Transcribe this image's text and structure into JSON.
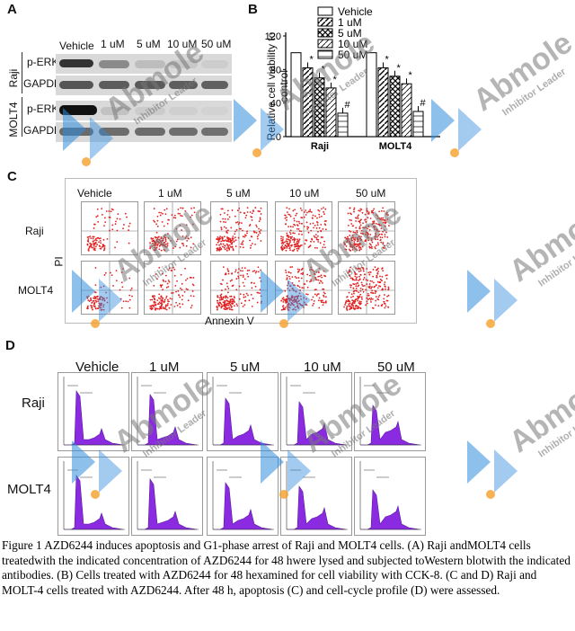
{
  "panelA": {
    "letter": "A",
    "columns": [
      "Vehicle",
      "1 uM",
      "5 uM",
      "10 uM",
      "50 uM"
    ],
    "cell_lines": [
      "Raji",
      "MOLT4"
    ],
    "rows": [
      "p-ERK",
      "GAPDH",
      "p-ERK",
      "GAPDH"
    ]
  },
  "panelB": {
    "letter": "B",
    "legend": [
      "Vehicle",
      "1 uM",
      "5 uM",
      "10 uM",
      "50 uM"
    ],
    "ylabel": "Relative cell viability to control",
    "yticks": [
      "0",
      "40",
      "80",
      "120"
    ],
    "groups": [
      "Raji",
      "MOLT4"
    ],
    "star": "*",
    "hash": "#"
  },
  "chart_data": {
    "type": "bar",
    "categories": [
      "Raji",
      "MOLT4"
    ],
    "series": [
      {
        "name": "Vehicle",
        "values": [
          100,
          100
        ]
      },
      {
        "name": "1 uM",
        "values": [
          82,
          82
        ]
      },
      {
        "name": "5 uM",
        "values": [
          70,
          72
        ]
      },
      {
        "name": "10 uM",
        "values": [
          58,
          63
        ]
      },
      {
        "name": "50 uM",
        "values": [
          28,
          30
        ]
      }
    ],
    "ylabel": "Relative cell viability to control",
    "ylim": [
      0,
      120
    ],
    "yticks": [
      0,
      40,
      80,
      120
    ]
  },
  "panelC": {
    "letter": "C",
    "columns": [
      "Vehicle",
      "1 uM",
      "5 uM",
      "10 uM",
      "50 uM"
    ],
    "rows": [
      "Raji",
      "MOLT4"
    ],
    "ylabel": "PI",
    "xlabel": "Annexin V"
  },
  "panelD": {
    "letter": "D",
    "columns": [
      "Vehicle",
      "1 uM",
      "5 uM",
      "10 uM",
      "50 uM"
    ],
    "rows": [
      "Raji",
      "MOLT4"
    ]
  },
  "watermark": {
    "brand": "Abmole",
    "tagline": "Inhibitor Leader"
  },
  "caption": "Figure 1 AZD6244 induces apoptosis and G1-phase arrest of Raji and MOLT4 cells. (A) Raji andMOLT4 cells treatedwith the indicated concentration of AZD6244 for 48 hwere lysed and subjected toWestern blotwith the indicated antibodies. (B) Cells treated with AZD6244 for 48 hexamined for cell viability with CCK-8. (C and D) Raji and MOLT-4 cells treated with AZD6244. After 48 h, apoptosis (C) and cell-cycle profile (D) were assessed."
}
